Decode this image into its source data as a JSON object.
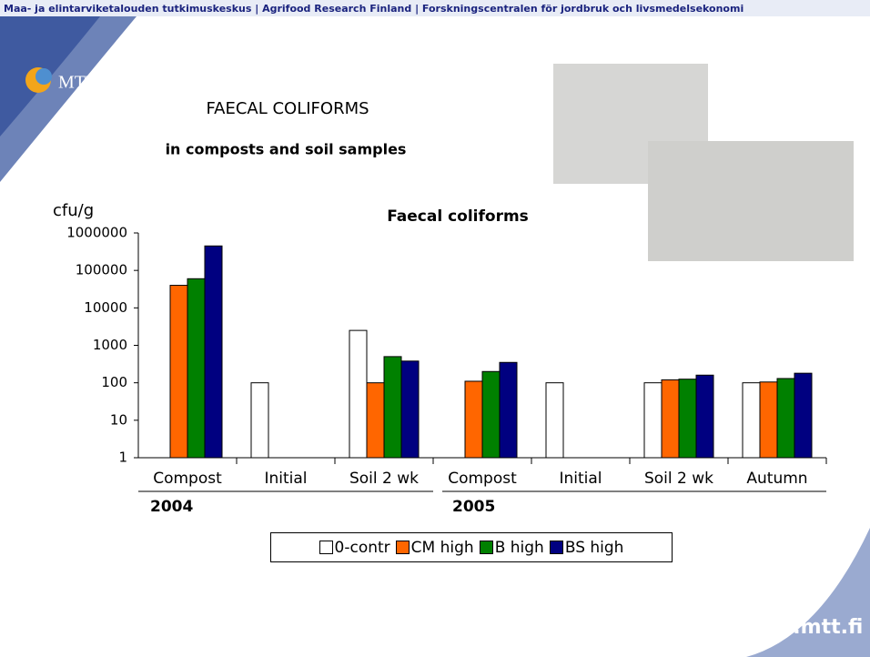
{
  "header": {
    "banner": "Maa- ja elintarviketalouden tutkimuskeskus  |  Agrifood Research Finland  |  Forskningscentralen för jordbruk och livsmedelsekonomi",
    "logo": "MTT"
  },
  "slide": {
    "title": "FAECAL COLIFORMS",
    "subtitle": "in composts and soil samples"
  },
  "footer": "www.mtt.fi",
  "chart_data": {
    "type": "bar",
    "title": "Faecal coliforms",
    "y_label": "cfu/g",
    "categories": [
      "Compost",
      "Initial",
      "Soil 2 wk",
      "Compost",
      "Initial",
      "Soil 2 wk",
      "Autumn"
    ],
    "group_labels": [
      "2004",
      "2005"
    ],
    "log_scale": true,
    "ylim": [
      1,
      1000000
    ],
    "yticks": [
      1,
      10,
      100,
      1000,
      10000,
      100000,
      1000000
    ],
    "grid": false,
    "series": [
      {
        "name": "0-contr",
        "color": "#ffffff",
        "values": [
          null,
          100,
          2500,
          null,
          100,
          100,
          100
        ]
      },
      {
        "name": "CM high",
        "color": "#ff6600",
        "values": [
          40000,
          null,
          100,
          110,
          null,
          120,
          105
        ]
      },
      {
        "name": "B high",
        "color": "#008000",
        "values": [
          60000,
          null,
          500,
          200,
          null,
          125,
          130
        ]
      },
      {
        "name": "BS high",
        "color": "#000080",
        "values": [
          450000,
          null,
          380,
          350,
          null,
          160,
          180
        ]
      }
    ]
  }
}
